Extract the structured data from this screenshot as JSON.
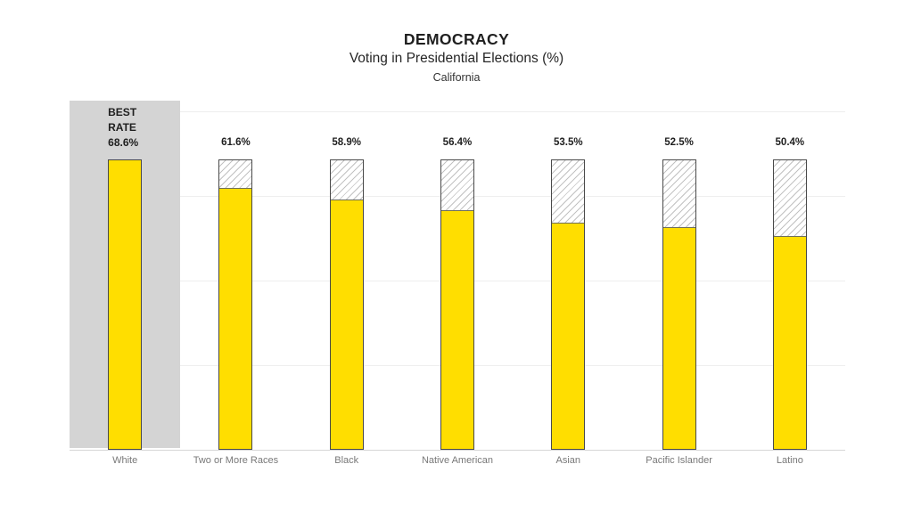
{
  "title": "DEMOCRACY",
  "subtitle": "Voting in Presidential Elections (%)",
  "region": "California",
  "chart_data": {
    "type": "bar",
    "title": "DEMOCRACY",
    "subtitle": "Voting in Presidential Elections (%)",
    "region_label": "California",
    "categories": [
      "White",
      "Two or More Races",
      "Black",
      "Native American",
      "Asian",
      "Pacific Islander",
      "Latino"
    ],
    "values": [
      68.6,
      61.6,
      58.9,
      56.4,
      53.5,
      52.5,
      50.4
    ],
    "value_labels": [
      "68.6%",
      "61.6%",
      "58.9%",
      "56.4%",
      "53.5%",
      "52.5%",
      "50.4%"
    ],
    "best_index": 0,
    "best_rate": 68.6,
    "best_label_lines": [
      "BEST",
      "RATE",
      "68.6%"
    ],
    "xlabel": "",
    "ylabel": "",
    "ylim": [
      0,
      82.5
    ],
    "gridline_values": [
      20,
      40,
      60,
      80
    ],
    "grid": "on",
    "legend": "none",
    "colors": {
      "bar_fill": "#FFDE00",
      "bar_border": "#4a4a4a",
      "fill_top_edge": "#6f6f5a",
      "hatch_line": "#c2c2c2",
      "hatch_bg": "#ffffff",
      "highlight_column_bg": "#d4d4d4",
      "gridline": "#eeeeee",
      "axis_line": "#d6d6d6",
      "title_color": "#1f1f1f",
      "value_label_color": "#1f1f1f",
      "axis_label_color": "#787878",
      "page_bg": "#ffffff"
    }
  }
}
